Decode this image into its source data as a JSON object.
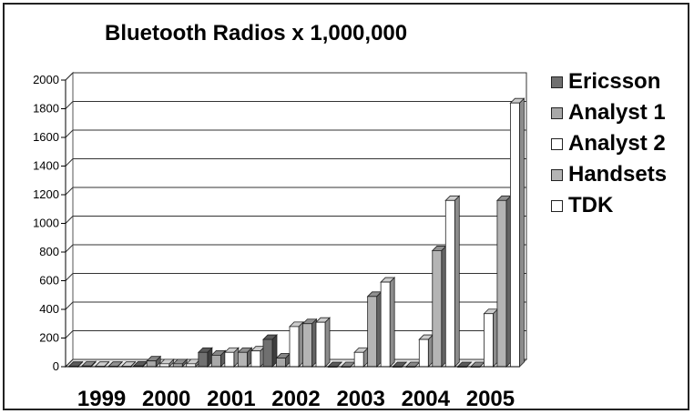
{
  "chart_data": {
    "type": "bar",
    "title": "Bluetooth Radios x 1,000,000",
    "xlabel": "",
    "ylabel": "",
    "categories": [
      "1999",
      "2000",
      "2001",
      "2002",
      "2003",
      "2004",
      "2005"
    ],
    "ylim": [
      0,
      2000
    ],
    "yticks": [
      0,
      200,
      400,
      600,
      800,
      1000,
      1200,
      1400,
      1600,
      1800,
      2000
    ],
    "grid": true,
    "legend_position": "right",
    "series": [
      {
        "name": "Ericsson",
        "color": "#707070",
        "values": [
          2,
          5,
          100,
          190,
          0,
          0,
          0
        ]
      },
      {
        "name": "Analyst 1",
        "color": "#a8a8a8",
        "values": [
          5,
          40,
          80,
          60,
          0,
          0,
          0
        ]
      },
      {
        "name": "Analyst 2",
        "color": "#ffffff",
        "values": [
          2,
          20,
          100,
          280,
          100,
          190,
          370
        ]
      },
      {
        "name": "Handsets",
        "color": "#b4b4b4",
        "values": [
          2,
          20,
          100,
          300,
          490,
          810,
          1160
        ]
      },
      {
        "name": "TDK",
        "color": "#ffffff",
        "values": [
          2,
          20,
          110,
          310,
          590,
          1160,
          1840
        ]
      }
    ]
  }
}
